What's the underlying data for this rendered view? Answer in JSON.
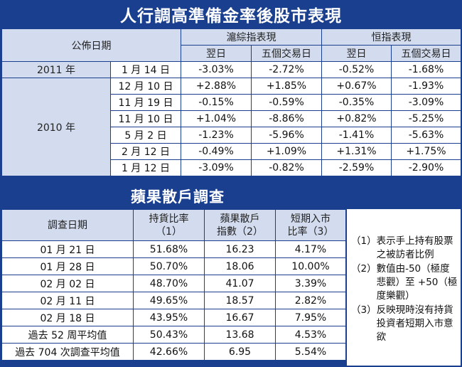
{
  "title": "人行調高準備金率後股市表現",
  "table1": {
    "col_date": "公佈日期",
    "group1": "滬綜指表現",
    "group2": "恒指表現",
    "sub_next": "翌日",
    "sub_five": "五個交易日",
    "years": [
      {
        "year": "2011 年",
        "rows": [
          {
            "date": "1 月 14 日",
            "v": [
              "-3.03%",
              "-2.72%",
              "-0.52%",
              "-1.68%"
            ]
          }
        ]
      },
      {
        "year": "2010 年",
        "rows": [
          {
            "date": "12 月 10 日",
            "v": [
              "+2.88%",
              "+1.85%",
              "+0.67%",
              "-1.93%"
            ]
          },
          {
            "date": "11 月 19 日",
            "v": [
              "-0.15%",
              "-0.59%",
              "-0.35%",
              "-3.09%"
            ]
          },
          {
            "date": "11 月 10 日",
            "v": [
              "+1.04%",
              "-8.86%",
              "+0.82%",
              "-5.25%"
            ]
          },
          {
            "date": "5 月 2 日",
            "v": [
              "-1.23%",
              "-5.96%",
              "-1.41%",
              "-5.63%"
            ]
          },
          {
            "date": "2 月 12 日",
            "v": [
              "-0.49%",
              "+1.09%",
              "+1.31%",
              "+1.75%"
            ]
          },
          {
            "date": "1 月 12 日",
            "v": [
              "-3.09%",
              "-0.82%",
              "-2.59%",
              "-2.90%"
            ]
          }
        ]
      }
    ]
  },
  "subtitle": "蘋果散戶調查",
  "table2": {
    "h_date": "調查日期",
    "h1a": "持貨比率",
    "h1b": "（1）",
    "h2a": "蘋果散戶",
    "h2b": "指數（2）",
    "h3a": "短期入市",
    "h3b": "比率（3）",
    "rows": [
      {
        "date": "01 月 21 日",
        "v": [
          "51.68%",
          "16.23",
          "4.17%"
        ]
      },
      {
        "date": "01 月 28 日",
        "v": [
          "50.70%",
          "18.06",
          "10.00%"
        ]
      },
      {
        "date": "02 月 02 日",
        "v": [
          "48.70%",
          "41.07",
          "3.39%"
        ]
      },
      {
        "date": "02 月 11 日",
        "v": [
          "49.65%",
          "18.57",
          "2.82%"
        ]
      },
      {
        "date": "02 月 18 日",
        "v": [
          "43.95%",
          "16.67",
          "7.95%"
        ]
      },
      {
        "date": "過去 52 周平均值",
        "v": [
          "50.43%",
          "13.68",
          "4.53%"
        ]
      },
      {
        "date": "過去 704 次調查平均值",
        "v": [
          "42.66%",
          "6.95",
          "5.54%"
        ]
      }
    ]
  },
  "notes": [
    {
      "num": "（1）",
      "text": "表示手上持有股票之被訪者比例"
    },
    {
      "num": "（2）",
      "text": "數值由-50（極度悲觀）至 +50（極度樂觀）"
    },
    {
      "num": "（3）",
      "text": "反映現時沒有持貨投資者短期入市意欲"
    }
  ]
}
